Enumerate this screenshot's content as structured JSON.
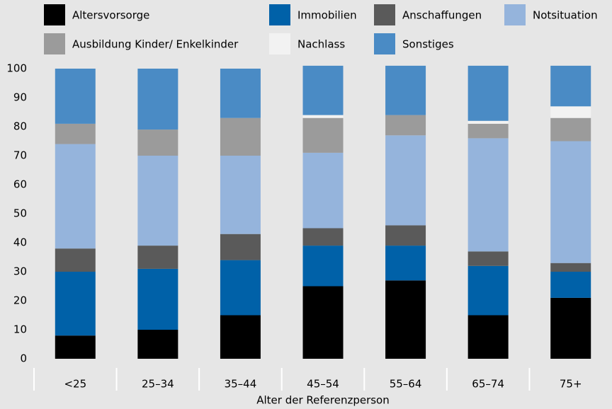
{
  "chart_data": {
    "type": "stacked_bar",
    "x_label": "Alter der Referenzperson",
    "categories": [
      "<25",
      "25–34",
      "35–44",
      "45–54",
      "55–64",
      "65–74",
      "75+"
    ],
    "series": [
      {
        "name": "Altersvorsorge",
        "color": "#000000",
        "values": [
          8,
          10,
          15,
          25,
          27,
          15,
          21
        ]
      },
      {
        "name": "Immobilien",
        "color": "#0061a8",
        "values": [
          22,
          21,
          19,
          14,
          12,
          17,
          9
        ]
      },
      {
        "name": "Anschaffungen",
        "color": "#5a5a5a",
        "values": [
          8,
          8,
          9,
          6,
          7,
          5,
          3
        ]
      },
      {
        "name": "Notsituation",
        "color": "#95b4dc",
        "values": [
          36,
          31,
          27,
          26,
          31,
          39,
          42
        ]
      },
      {
        "name": "Ausbildung Kinder/ Enkelkinder",
        "color": "#9b9b9b",
        "values": [
          7,
          9,
          13,
          12,
          7,
          5,
          8
        ]
      },
      {
        "name": "Nachlass",
        "color": "#f2f2f2",
        "values": [
          0,
          0,
          0,
          1,
          0,
          1,
          4
        ]
      },
      {
        "name": "Sonstiges",
        "color": "#4a8bc5",
        "values": [
          19,
          21,
          17,
          17,
          17,
          19,
          14
        ]
      }
    ],
    "ylim": [
      0,
      100
    ],
    "yticks": [
      0,
      10,
      20,
      30,
      40,
      50,
      60,
      70,
      80,
      90,
      100
    ],
    "grid": false
  }
}
